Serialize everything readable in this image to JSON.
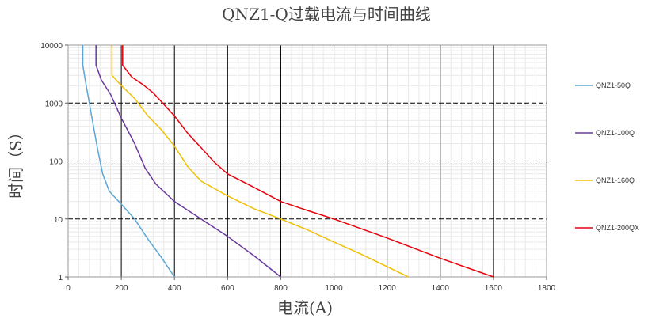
{
  "chart_data": {
    "type": "line",
    "title": "QNZ1-Q过载电流与时间曲线",
    "xlabel": "电流(A)",
    "ylabel": "时间（S）",
    "xlim": [
      0,
      1800
    ],
    "ylim": [
      1,
      10000
    ],
    "y_scale": "log",
    "x_ticks": [
      "0",
      "200",
      "400",
      "600",
      "800",
      "1000",
      "1200",
      "1400",
      "1600",
      "1800"
    ],
    "y_ticks": [
      "1",
      "10",
      "100",
      "1000",
      "10000"
    ],
    "grid": true,
    "legend_position": "right",
    "series": [
      {
        "name": "QNZ1-50Q",
        "color": "#5aa7d6",
        "points": [
          [
            55,
            10000
          ],
          [
            55,
            4500
          ],
          [
            68,
            2000
          ],
          [
            80,
            1000
          ],
          [
            95,
            400
          ],
          [
            112,
            150
          ],
          [
            130,
            60
          ],
          [
            155,
            30
          ],
          [
            200,
            18
          ],
          [
            250,
            10
          ],
          [
            300,
            4.5
          ],
          [
            350,
            2.2
          ],
          [
            400,
            1
          ]
        ]
      },
      {
        "name": "QNZ1-100Q",
        "color": "#6a3a9e",
        "points": [
          [
            105,
            10000
          ],
          [
            105,
            4500
          ],
          [
            125,
            2500
          ],
          [
            160,
            1400
          ],
          [
            200,
            550
          ],
          [
            250,
            200
          ],
          [
            290,
            75
          ],
          [
            330,
            40
          ],
          [
            400,
            20
          ],
          [
            500,
            10
          ],
          [
            600,
            5
          ],
          [
            700,
            2.3
          ],
          [
            800,
            1
          ]
        ]
      },
      {
        "name": "QNZ1-160Q",
        "color": "#f0c000",
        "points": [
          [
            165,
            10000
          ],
          [
            165,
            3000
          ],
          [
            200,
            2000
          ],
          [
            250,
            1200
          ],
          [
            300,
            600
          ],
          [
            350,
            350
          ],
          [
            400,
            180
          ],
          [
            450,
            80
          ],
          [
            500,
            45
          ],
          [
            600,
            25
          ],
          [
            700,
            15
          ],
          [
            800,
            10
          ],
          [
            900,
            6.5
          ],
          [
            1000,
            4
          ],
          [
            1100,
            2.5
          ],
          [
            1200,
            1.5
          ],
          [
            1280,
            1
          ]
        ]
      },
      {
        "name": "QNZ1-200QX",
        "color": "#e8000b",
        "points": [
          [
            205,
            10000
          ],
          [
            205,
            4500
          ],
          [
            240,
            2800
          ],
          [
            280,
            2100
          ],
          [
            320,
            1500
          ],
          [
            400,
            600
          ],
          [
            450,
            300
          ],
          [
            500,
            170
          ],
          [
            550,
            95
          ],
          [
            600,
            60
          ],
          [
            700,
            35
          ],
          [
            800,
            20
          ],
          [
            900,
            14
          ],
          [
            1000,
            10
          ],
          [
            1200,
            4.7
          ],
          [
            1400,
            2.1
          ],
          [
            1600,
            1
          ]
        ]
      }
    ]
  }
}
